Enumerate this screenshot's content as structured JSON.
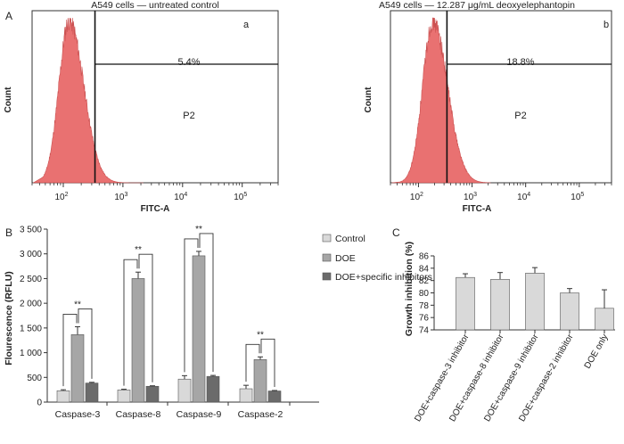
{
  "panel_letters": {
    "a": "A",
    "b": "B",
    "c": "C"
  },
  "chart_data": [
    {
      "id": "histogram-a",
      "type": "area",
      "title": "A549 cells — untreated control",
      "corner_label": "a",
      "xlabel": "FITC-A",
      "ylabel": "Count",
      "x_scale": "log",
      "xlim": [
        30,
        400000
      ],
      "x_ticks": [
        {
          "value": 100,
          "base": "10",
          "exp": "2"
        },
        {
          "value": 1000,
          "base": "10",
          "exp": "3"
        },
        {
          "value": 10000,
          "base": "10",
          "exp": "4"
        },
        {
          "value": 100000,
          "base": "10",
          "exp": "5"
        }
      ],
      "gate_name": "P2",
      "gate_threshold": 340,
      "gate_percent": "5.4%",
      "fill_color": "#e86a6a",
      "peak_center": 125,
      "peak_width": 0.17
    },
    {
      "id": "histogram-b",
      "type": "area",
      "title": "A549 cells — 12.287 μg/mL deoxyelephantopin",
      "corner_label": "b",
      "xlabel": "FITC-A",
      "ylabel": "Count",
      "x_scale": "log",
      "xlim": [
        30,
        400000
      ],
      "x_ticks": [
        {
          "value": 100,
          "base": "10",
          "exp": "2"
        },
        {
          "value": 1000,
          "base": "10",
          "exp": "3"
        },
        {
          "value": 10000,
          "base": "10",
          "exp": "4"
        },
        {
          "value": 100000,
          "base": "10",
          "exp": "5"
        }
      ],
      "gate_name": "P2",
      "gate_threshold": 340,
      "gate_percent": "18.8%",
      "fill_color": "#e86a6a",
      "peak_center": 185,
      "peak_width": 0.19
    },
    {
      "id": "bar-b",
      "type": "bar",
      "ylabel": "Flourescence (RFLU)",
      "ylim": [
        0,
        3500
      ],
      "y_ticks": [
        "0",
        "500",
        "1 000",
        "1 500",
        "2 000",
        "2 500",
        "3 000",
        "3 500"
      ],
      "legend_position": "top-right",
      "categories": [
        "Caspase-3",
        "Caspase-8",
        "Caspase-9",
        "Caspase-2"
      ],
      "series": [
        {
          "name": "Control",
          "color": "#d9d9d9",
          "values": [
            230,
            245,
            465,
            270
          ],
          "errors": [
            20,
            15,
            70,
            70
          ]
        },
        {
          "name": "DOE",
          "color": "#a6a6a6",
          "values": [
            1365,
            2500,
            2960,
            860
          ],
          "errors": [
            160,
            130,
            90,
            55
          ]
        },
        {
          "name": "DOE+specific inhibitors",
          "color": "#6b6b6b",
          "values": [
            385,
            320,
            520,
            225
          ],
          "errors": [
            15,
            10,
            20,
            10
          ]
        }
      ],
      "significance_label": "**"
    },
    {
      "id": "bar-c",
      "type": "bar",
      "ylabel": "Growth inhibition (%)",
      "ylim": [
        74,
        86
      ],
      "y_ticks": [
        "74",
        "76",
        "78",
        "80",
        "82",
        "84",
        "86"
      ],
      "categories": [
        "DOE+caspase-3 inhibitor",
        "DOE+caspase-8 inhibitor",
        "DOE+caspase-9 inhibitor",
        "DOE+caspase-2 inhibitor",
        "DOE only"
      ],
      "series": [
        {
          "color": "#d9d9d9",
          "values": [
            82.5,
            82.2,
            83.2,
            80.0,
            77.5
          ],
          "errors": [
            0.6,
            1.1,
            0.9,
            0.7,
            3.0
          ]
        }
      ]
    }
  ]
}
